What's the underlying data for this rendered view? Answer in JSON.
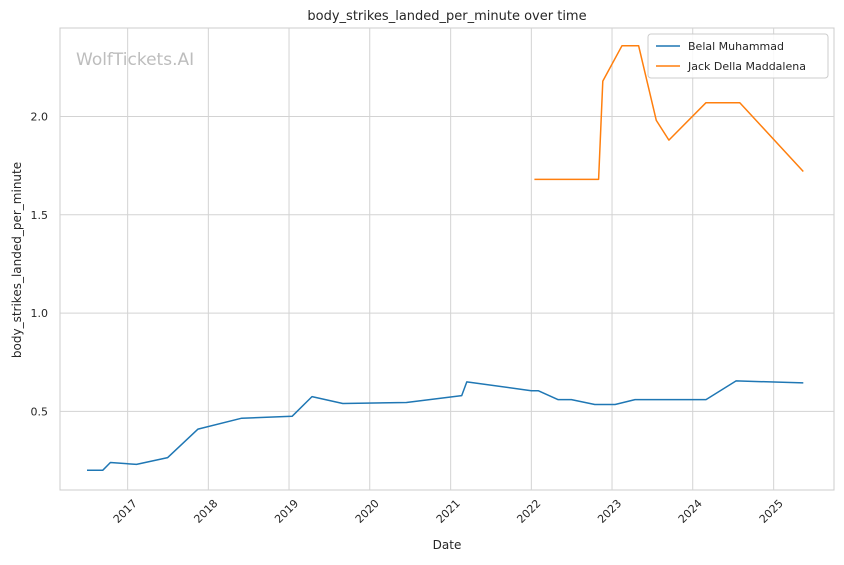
{
  "chart_data": {
    "type": "line",
    "title": "body_strikes_landed_per_minute over time",
    "xlabel": "Date",
    "ylabel": "body_strikes_landed_per_minute",
    "watermark": "WolfTickets.AI",
    "xlim": [
      "2016-03-01",
      "2025-10-01"
    ],
    "ylim": [
      0.1,
      2.45
    ],
    "x_ticks": [
      "2017-01-01",
      "2018-01-01",
      "2019-01-01",
      "2020-01-01",
      "2021-01-01",
      "2022-01-01",
      "2023-01-01",
      "2024-01-01",
      "2025-01-01"
    ],
    "x_tick_labels": [
      "2017",
      "2018",
      "2019",
      "2020",
      "2021",
      "2022",
      "2023",
      "2024",
      "2025"
    ],
    "y_ticks": [
      0.5,
      1.0,
      1.5,
      2.0
    ],
    "y_tick_labels": [
      "0.5",
      "1.0",
      "1.5",
      "2.0"
    ],
    "grid": true,
    "legend_position": "top-right",
    "series": [
      {
        "name": "Belal Muhammad",
        "color": "#1f77b4",
        "x": [
          "2016-07-01",
          "2016-09-10",
          "2016-10-15",
          "2017-02-10",
          "2017-07-01",
          "2017-11-15",
          "2018-06-01",
          "2019-01-15",
          "2019-04-15",
          "2019-09-01",
          "2020-06-15",
          "2021-02-20",
          "2021-03-15",
          "2022-01-01",
          "2022-02-01",
          "2022-05-01",
          "2022-07-01",
          "2022-10-15",
          "2023-01-15",
          "2023-04-15",
          "2024-03-01",
          "2024-07-15",
          "2025-05-15"
        ],
        "y": [
          0.2,
          0.2,
          0.24,
          0.23,
          0.265,
          0.41,
          0.465,
          0.475,
          0.575,
          0.54,
          0.545,
          0.58,
          0.65,
          0.605,
          0.605,
          0.56,
          0.56,
          0.535,
          0.535,
          0.56,
          0.56,
          0.655,
          0.645
        ]
      },
      {
        "name": "Jack Della Maddalena",
        "color": "#ff7f0e",
        "x": [
          "2022-01-15",
          "2022-11-01",
          "2022-11-20",
          "2023-02-15",
          "2023-05-01",
          "2023-07-20",
          "2023-09-15",
          "2024-03-01",
          "2024-08-01",
          "2025-05-15"
        ],
        "y": [
          1.68,
          1.68,
          2.18,
          2.36,
          2.36,
          1.98,
          1.88,
          2.07,
          2.07,
          1.72
        ]
      }
    ]
  }
}
